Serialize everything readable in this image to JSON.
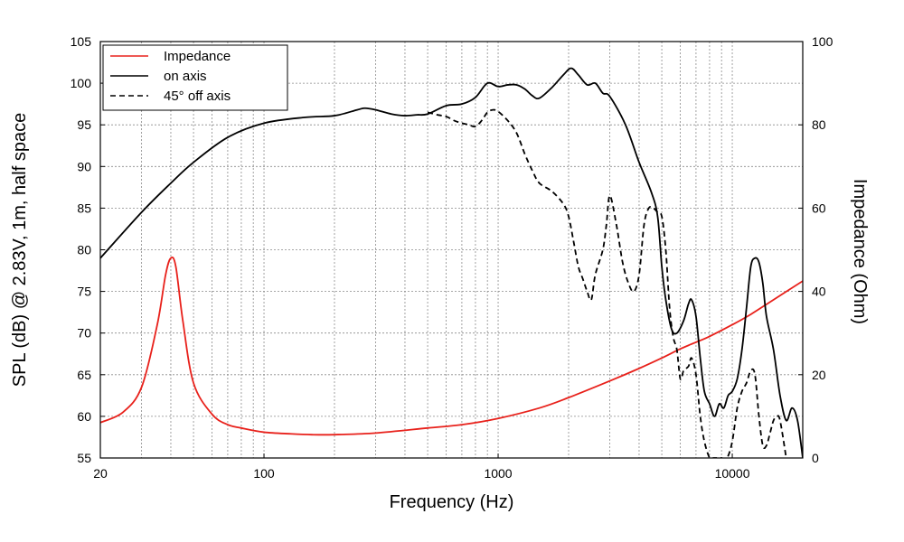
{
  "chart_data": {
    "type": "line",
    "xlabel": "Frequency (Hz)",
    "ylabel": "SPL (dB) @ 2.83V, 1m, half space",
    "y2label": "Impedance (Ohm)",
    "xscale": "log",
    "xlim": [
      20,
      20000
    ],
    "ylim": [
      55,
      105
    ],
    "y2lim": [
      0,
      100
    ],
    "grid": true,
    "legend_position": "top-left",
    "x_ticks": [
      20,
      100,
      1000,
      10000
    ],
    "x_tick_labels": [
      "20",
      "100",
      "1000",
      "10000"
    ],
    "y_ticks": [
      55,
      60,
      65,
      70,
      75,
      80,
      85,
      90,
      95,
      100,
      105
    ],
    "y_tick_labels": [
      "55",
      "60",
      "65",
      "70",
      "75",
      "80",
      "85",
      "90",
      "95",
      "100",
      "105"
    ],
    "y2_ticks": [
      0,
      20,
      40,
      60,
      80,
      100
    ],
    "y2_tick_labels": [
      "0",
      "20",
      "40",
      "60",
      "80",
      "100"
    ],
    "series": [
      {
        "name": "Impedance",
        "axis": "right",
        "color": "#e8211b",
        "dash": "solid",
        "x": [
          20,
          25,
          30,
          35,
          38,
          40,
          42,
          45,
          50,
          60,
          70,
          80,
          100,
          130,
          160,
          200,
          300,
          500,
          700,
          1000,
          1500,
          2000,
          3000,
          4000,
          5000,
          6000,
          7000,
          8000,
          10000,
          12000,
          15000,
          20000
        ],
        "y": [
          8.5,
          11,
          17,
          32,
          44,
          48,
          46,
          33,
          18,
          10.5,
          8,
          7.2,
          6.2,
          5.8,
          5.6,
          5.6,
          6,
          7.2,
          8,
          9.5,
          12,
          14.5,
          18.5,
          21.5,
          24,
          26.2,
          27.8,
          29.2,
          32,
          34.5,
          38,
          42.5
        ]
      },
      {
        "name": "on axis",
        "axis": "left",
        "color": "#000000",
        "dash": "solid",
        "x": [
          20,
          30,
          40,
          50,
          70,
          100,
          150,
          200,
          250,
          270,
          300,
          350,
          400,
          450,
          500,
          600,
          700,
          800,
          900,
          1000,
          1100,
          1200,
          1300,
          1400,
          1500,
          1700,
          1900,
          2050,
          2200,
          2400,
          2600,
          2800,
          3000,
          3500,
          4000,
          4500,
          4800,
          5000,
          5200,
          5500,
          5800,
          6200,
          6500,
          6700,
          7000,
          7300,
          7600,
          8000,
          8400,
          8800,
          9200,
          9600,
          10000,
          10500,
          11000,
          11500,
          12000,
          12500,
          13000,
          13500,
          14000,
          15000,
          16000,
          17000,
          18000,
          19000,
          20000
        ],
        "y": [
          79,
          84.5,
          88,
          90.5,
          93.5,
          95.2,
          95.9,
          96.1,
          96.8,
          97,
          96.8,
          96.3,
          96.1,
          96.2,
          96.3,
          97.3,
          97.5,
          98.3,
          100,
          99.6,
          99.8,
          99.8,
          99.3,
          98.5,
          98.2,
          99.5,
          101,
          101.8,
          101,
          99.8,
          100,
          98.8,
          98.4,
          95,
          90.5,
          87,
          84,
          78,
          74,
          70.5,
          70,
          71.5,
          73.5,
          74,
          72,
          67,
          63,
          61.5,
          60,
          61.5,
          61,
          62.5,
          63,
          64.5,
          68,
          73,
          78,
          79,
          78.5,
          76,
          72,
          68,
          62.5,
          59.5,
          61,
          59.5,
          55
        ]
      },
      {
        "name": "45° off axis",
        "axis": "left",
        "color": "#000000",
        "dash": "dashed",
        "x": [
          500,
          550,
          600,
          650,
          700,
          750,
          800,
          850,
          900,
          950,
          1000,
          1100,
          1200,
          1300,
          1400,
          1500,
          1700,
          1900,
          2000,
          2100,
          2200,
          2300,
          2400,
          2500,
          2600,
          2800,
          2900,
          3000,
          3200,
          3400,
          3600,
          3800,
          4000,
          4200,
          4400,
          4600,
          4800,
          5000,
          5200,
          5400,
          5600,
          5800,
          6000,
          6200,
          6500,
          6700,
          7000,
          7300,
          7600,
          8000,
          8300,
          8600,
          9000,
          9500,
          10000,
          10500,
          11000,
          11500,
          12000,
          12500,
          13000,
          13500,
          14000,
          14500,
          15000,
          15500,
          16000,
          17000
        ],
        "y": [
          96.5,
          96.2,
          96,
          95.5,
          95.2,
          95,
          94.8,
          95.5,
          96.5,
          96.8,
          96.6,
          95.5,
          94,
          91.5,
          89.5,
          88,
          87,
          85.5,
          84,
          81,
          78,
          76.5,
          75,
          74,
          77,
          80,
          83,
          86.5,
          83,
          78.5,
          76,
          75,
          77,
          83,
          85,
          85,
          84.5,
          84,
          80,
          73,
          69.5,
          68,
          64.5,
          65.5,
          66,
          67,
          65,
          60,
          57,
          55,
          55,
          55,
          55,
          55,
          57,
          61,
          63,
          64,
          65.5,
          65,
          60,
          56.5,
          56.5,
          58,
          59.5,
          60,
          59.5,
          55
        ]
      }
    ]
  }
}
